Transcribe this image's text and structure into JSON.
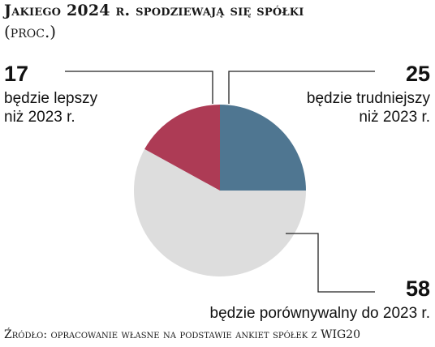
{
  "chart_data": {
    "type": "pie",
    "title": "Jakiego 2024 r. spodziewają się spółki",
    "subtitle": "(proc.)",
    "slices": [
      {
        "label": "będzie trudniejszy niż 2023 r.",
        "label_lines": [
          "będzie trudniejszy",
          "niż 2023 r."
        ],
        "value": 25,
        "color": "#4f7691"
      },
      {
        "label": "będzie porównywalny do 2023 r.",
        "label_lines": [
          "będzie porównywalny do 2023 r."
        ],
        "value": 58,
        "color": "#dddddd"
      },
      {
        "label": "będzie lepszy niż 2023 r.",
        "label_lines": [
          "będzie lepszy",
          "niż 2023 r."
        ],
        "value": 17,
        "color": "#ad3b55"
      }
    ],
    "value_labels": [
      "25",
      "58",
      "17"
    ],
    "source": "Źródło: opracowanie własne na podstawie ankiet spółek z WIG20"
  }
}
